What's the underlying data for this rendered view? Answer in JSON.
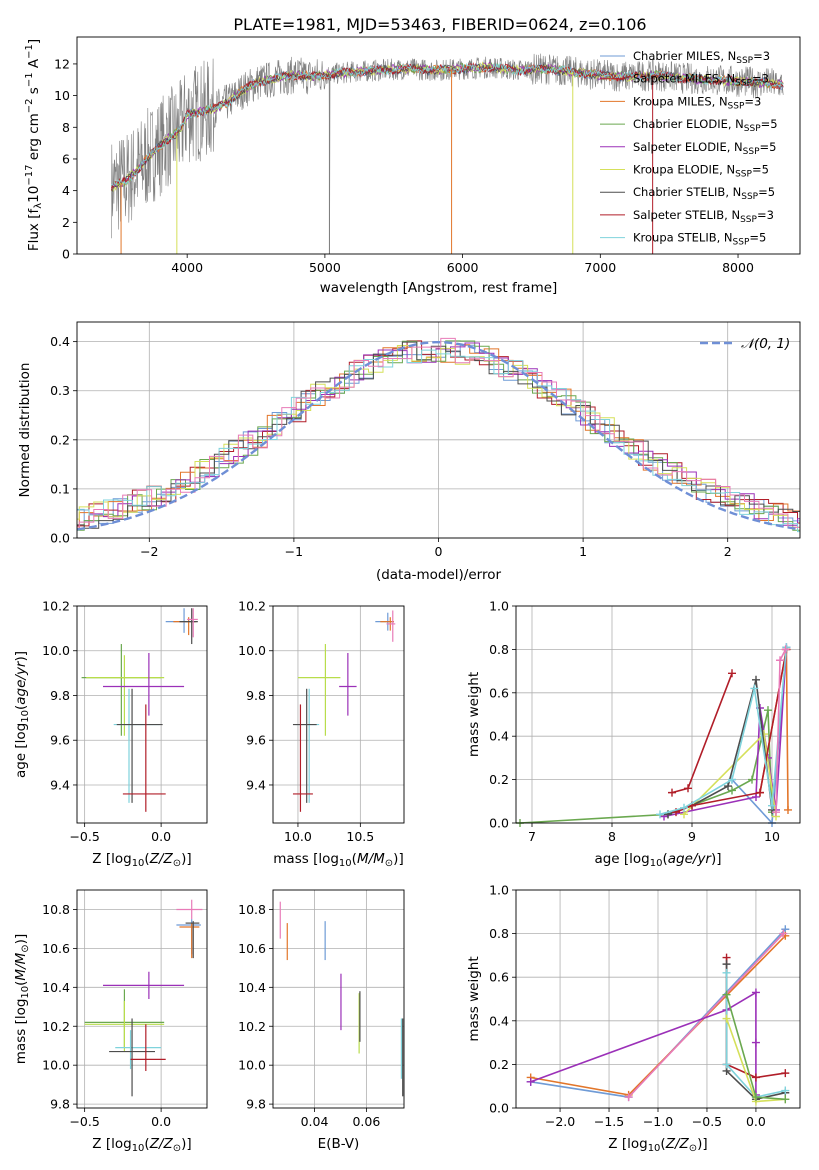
{
  "figure": {
    "title": "PLATE=1981, MJD=53463, FIBERID=0624, z=0.106"
  },
  "series_colors": {
    "Chabrier MILES": "#6f9bd6",
    "Salpeter MILES": "#b11e29",
    "Kroupa MILES": "#e2762a",
    "Chabrier ELODIE": "#6aa84f",
    "Salpeter ELODIE": "#9b30b8",
    "Kroupa ELODIE": "#d5e05a",
    "Chabrier STELIB": "#4d4d4d",
    "Salpeter STELIB": "#b11e29",
    "Kroupa STELIB": "#7fd3dc",
    "data": "#808080",
    "normal": "#6f8fd6",
    "extra_pink": "#e87bb8",
    "extra_lime": "#b8dd4b"
  },
  "chart_data": [
    {
      "id": "spectrum",
      "type": "line",
      "xlabel": "wavelength [Angstrom, rest frame]",
      "ylabel": "Flux [f_λ 10^-17 erg cm^-2 s^-1 A^-1]",
      "xlim": [
        3200,
        8450
      ],
      "ylim": [
        0,
        13.7
      ],
      "xticks": [
        4000,
        5000,
        6000,
        7000,
        8000
      ],
      "yticks": [
        0,
        2,
        4,
        6,
        8,
        10,
        12
      ],
      "legend_position": "top-right",
      "legend": [
        {
          "label": "Chabrier MILES, N_SSP=3",
          "color": "#6f9bd6"
        },
        {
          "label": "Salpeter MILES, N_SSP=3",
          "color": "#b11e29"
        },
        {
          "label": "Kroupa MILES, N_SSP=3",
          "color": "#e2762a"
        },
        {
          "label": "Chabrier ELODIE, N_SSP=5",
          "color": "#6aa84f"
        },
        {
          "label": "Salpeter ELODIE, N_SSP=5",
          "color": "#9b30b8"
        },
        {
          "label": "Kroupa ELODIE, N_SSP=5",
          "color": "#d5e05a"
        },
        {
          "label": "Chabrier STELIB, N_SSP=5",
          "color": "#4d4d4d"
        },
        {
          "label": "Salpeter STELIB, N_SSP=3",
          "color": "#b11e29"
        },
        {
          "label": "Kroupa STELIB, N_SSP=5",
          "color": "#7fd3dc"
        }
      ],
      "model_continuum": [
        [
          3450,
          4.2
        ],
        [
          3550,
          4.6
        ],
        [
          3650,
          5.4
        ],
        [
          3750,
          6.4
        ],
        [
          3850,
          7.2
        ],
        [
          3950,
          7.8
        ],
        [
          4000,
          8.8
        ],
        [
          4100,
          9.0
        ],
        [
          4200,
          9.2
        ],
        [
          4300,
          9.6
        ],
        [
          4400,
          10.3
        ],
        [
          4500,
          10.8
        ],
        [
          4600,
          11.0
        ],
        [
          4700,
          11.2
        ],
        [
          4800,
          11.3
        ],
        [
          4900,
          11.2
        ],
        [
          5000,
          11.3
        ],
        [
          5200,
          11.5
        ],
        [
          5400,
          11.6
        ],
        [
          5600,
          11.7
        ],
        [
          5800,
          11.6
        ],
        [
          6000,
          11.7
        ],
        [
          6200,
          11.8
        ],
        [
          6400,
          11.6
        ],
        [
          6600,
          11.7
        ],
        [
          6800,
          11.5
        ],
        [
          7000,
          11.3
        ],
        [
          7200,
          11.2
        ],
        [
          7400,
          11.3
        ],
        [
          7600,
          11.1
        ],
        [
          7800,
          11.0
        ],
        [
          8000,
          10.9
        ],
        [
          8200,
          10.8
        ],
        [
          8330,
          10.7
        ]
      ]
    },
    {
      "id": "residuals",
      "type": "histogram",
      "xlabel": "(data-model)/error",
      "ylabel": "Normed distribution",
      "xlim": [
        -2.5,
        2.5
      ],
      "ylim": [
        0,
        0.44
      ],
      "xticks": [
        -2,
        -1,
        0,
        1,
        2
      ],
      "yticks": [
        0.0,
        0.1,
        0.2,
        0.3,
        0.4
      ],
      "legend_position": "top-right",
      "legend": [
        {
          "label": "𝒩(0, 1)",
          "color": "#6f8fd6",
          "style": "dashed"
        }
      ],
      "bin_width": 0.1
    },
    {
      "id": "z-age",
      "type": "errorbar",
      "xlabel": "Z [log10(Z/Z⊙)]",
      "ylabel": "age  [log10(age/yr)]",
      "xlim": [
        -0.55,
        0.3
      ],
      "ylim": [
        9.23,
        10.2
      ],
      "xticks": [
        -0.5,
        0.0
      ],
      "yticks": [
        9.4,
        9.6,
        9.8,
        10.0,
        10.2
      ],
      "points": [
        {
          "x": 0.15,
          "y": 10.13,
          "xerr": [
            0.12,
            0.07
          ],
          "yerr": [
            0.05,
            0.06
          ],
          "color": "#6f9bd6"
        },
        {
          "x": 0.18,
          "y": 10.13,
          "xerr": [
            0.1,
            0.05
          ],
          "yerr": [
            0.06,
            0.02
          ],
          "color": "#e2762a"
        },
        {
          "x": 0.2,
          "y": 10.13,
          "xerr": [
            0.08,
            0.04
          ],
          "yerr": [
            0.1,
            0.06
          ],
          "color": "#4d4d4d"
        },
        {
          "x": 0.21,
          "y": 10.14,
          "xerr": [
            0.04,
            0.03
          ],
          "yerr": [
            0.08,
            0.05
          ],
          "color": "#e87bb8"
        },
        {
          "x": -0.26,
          "y": 9.88,
          "xerr": [
            0.26,
            0.26
          ],
          "yerr": [
            0.26,
            0.15
          ],
          "color": "#6aa84f"
        },
        {
          "x": -0.24,
          "y": 9.88,
          "xerr": [
            0.25,
            0.26
          ],
          "yerr": [
            0.26,
            0.1
          ],
          "color": "#b8dd4b"
        },
        {
          "x": -0.08,
          "y": 9.84,
          "xerr": [
            0.3,
            0.23
          ],
          "yerr": [
            0.13,
            0.15
          ],
          "color": "#9b30b8"
        },
        {
          "x": -0.21,
          "y": 9.67,
          "xerr": [
            0.1,
            0.2
          ],
          "yerr": [
            0.35,
            0.16
          ],
          "color": "#7fd3dc"
        },
        {
          "x": -0.19,
          "y": 9.67,
          "xerr": [
            0.1,
            0.2
          ],
          "yerr": [
            0.35,
            0.16
          ],
          "color": "#4d4d4d"
        },
        {
          "x": -0.1,
          "y": 9.36,
          "xerr": [
            0.15,
            0.13
          ],
          "yerr": [
            0.08,
            0.4
          ],
          "color": "#b11e29"
        }
      ]
    },
    {
      "id": "mass-age",
      "type": "errorbar",
      "xlabel": "mass [log10(M/M⊙)]",
      "ylabel": "",
      "xlim": [
        9.8,
        10.85
      ],
      "ylim": [
        9.23,
        10.2
      ],
      "xticks": [
        10.0,
        10.5
      ],
      "yticks": [
        9.4,
        9.6,
        9.8,
        10.0,
        10.2
      ],
      "points": [
        {
          "x": 10.72,
          "y": 10.13,
          "xerr": [
            0.1,
            0.05
          ],
          "yerr": [
            0.04,
            0.04
          ],
          "color": "#6f9bd6"
        },
        {
          "x": 10.74,
          "y": 10.13,
          "xerr": [
            0.08,
            0.03
          ],
          "yerr": [
            0.04,
            0.02
          ],
          "color": "#e2762a"
        },
        {
          "x": 10.76,
          "y": 10.12,
          "xerr": [
            0.05,
            0.02
          ],
          "yerr": [
            0.08,
            0.06
          ],
          "color": "#e87bb8"
        },
        {
          "x": 10.22,
          "y": 9.88,
          "xerr": [
            0.22,
            0.12
          ],
          "yerr": [
            0.26,
            0.15
          ],
          "color": "#b8dd4b"
        },
        {
          "x": 10.4,
          "y": 9.84,
          "xerr": [
            0.07,
            0.07
          ],
          "yerr": [
            0.13,
            0.15
          ],
          "color": "#9b30b8"
        },
        {
          "x": 10.09,
          "y": 9.67,
          "xerr": [
            0.11,
            0.08
          ],
          "yerr": [
            0.35,
            0.16
          ],
          "color": "#7fd3dc"
        },
        {
          "x": 10.07,
          "y": 9.67,
          "xerr": [
            0.11,
            0.08
          ],
          "yerr": [
            0.35,
            0.16
          ],
          "color": "#4d4d4d"
        },
        {
          "x": 10.02,
          "y": 9.36,
          "xerr": [
            0.06,
            0.1
          ],
          "yerr": [
            0.08,
            0.4
          ],
          "color": "#b11e29"
        }
      ]
    },
    {
      "id": "age-weight",
      "type": "line",
      "xlabel": "age  [log10(age/yr)]",
      "ylabel": "mass weight",
      "xlim": [
        6.8,
        10.35
      ],
      "ylim": [
        0,
        1
      ],
      "xticks": [
        7,
        8,
        9,
        10
      ],
      "yticks": [
        0.0,
        0.2,
        0.4,
        0.6,
        0.8,
        1.0
      ],
      "series": [
        {
          "name": "Chabrier MILES, N_SSP=3",
          "color": "#6f9bd6",
          "x": [
            9.5,
            10.0,
            10.18
          ],
          "y": [
            0.2,
            0.0,
            0.8
          ]
        },
        {
          "name": "Salpeter MILES, N_SSP=3",
          "color": "#b11e29",
          "x": [
            8.75,
            8.95,
            9.5
          ],
          "y": [
            0.14,
            0.16,
            0.69
          ]
        },
        {
          "name": "Kroupa MILES, N_SSP=3",
          "color": "#e2762a",
          "x": [
            9.85,
            10.18,
            10.2
          ],
          "y": [
            0.14,
            0.8,
            0.06
          ]
        },
        {
          "name": "Chabrier ELODIE, N_SSP=5",
          "color": "#6aa84f",
          "x": [
            6.85,
            8.7,
            9.5,
            9.75,
            9.95,
            10.0
          ],
          "y": [
            0.0,
            0.04,
            0.15,
            0.2,
            0.52,
            0.05
          ]
        },
        {
          "name": "Salpeter ELODIE, N_SSP=5",
          "color": "#9b30b8",
          "x": [
            8.65,
            9.8,
            9.85,
            9.95,
            10.05,
            10.18
          ],
          "y": [
            0.03,
            0.12,
            0.53,
            0.3,
            0.06,
            0.81
          ]
        },
        {
          "name": "Kroupa ELODIE, N_SSP=5",
          "color": "#d5e05a",
          "x": [
            8.9,
            9.9,
            10.05
          ],
          "y": [
            0.04,
            0.41,
            0.03
          ]
        },
        {
          "name": "Chabrier STELIB, N_SSP=5",
          "color": "#4d4d4d",
          "x": [
            8.7,
            9.0,
            9.45,
            9.8,
            10.0
          ],
          "y": [
            0.04,
            0.08,
            0.17,
            0.66,
            0.06
          ]
        },
        {
          "name": "Salpeter STELIB, N_SSP=3",
          "color": "#b11e29",
          "x": [
            8.8,
            9.0,
            9.85,
            10.18
          ],
          "y": [
            0.05,
            0.08,
            0.14,
            0.8
          ]
        },
        {
          "name": "Kroupa STELIB, N_SSP=5",
          "color": "#7fd3dc",
          "x": [
            8.6,
            8.9,
            9.5,
            9.78,
            10.0,
            10.18
          ],
          "y": [
            0.04,
            0.07,
            0.2,
            0.62,
            0.08,
            0.81
          ]
        },
        {
          "name": "",
          "color": "#e87bb8",
          "x": [
            10.05,
            10.1,
            10.17
          ],
          "y": [
            0.05,
            0.75,
            0.8
          ]
        }
      ]
    },
    {
      "id": "z-mass",
      "type": "errorbar",
      "xlabel": "Z [log10(Z/Z⊙)]",
      "ylabel": "mass [log10(M/M⊙)]",
      "xlim": [
        -0.55,
        0.3
      ],
      "ylim": [
        9.78,
        10.9
      ],
      "xticks": [
        -0.5,
        0.0
      ],
      "yticks": [
        9.8,
        10.0,
        10.2,
        10.4,
        10.6,
        10.8
      ],
      "points": [
        {
          "x": 0.2,
          "y": 10.8,
          "xerr": [
            0.1,
            0.07
          ],
          "yerr": [
            0.05,
            0.05
          ],
          "color": "#e87bb8"
        },
        {
          "x": 0.2,
          "y": 10.72,
          "xerr": [
            0.1,
            0.06
          ],
          "yerr": [
            0.15,
            0.03
          ],
          "color": "#6f9bd6"
        },
        {
          "x": 0.2,
          "y": 10.71,
          "xerr": [
            0.08,
            0.05
          ],
          "yerr": [
            0.16,
            0.02
          ],
          "color": "#e2762a"
        },
        {
          "x": 0.21,
          "y": 10.73,
          "xerr": [
            0.05,
            0.04
          ],
          "yerr": [
            0.18,
            0.01
          ],
          "color": "#4d4d4d"
        },
        {
          "x": -0.24,
          "y": 10.22,
          "xerr": [
            0.26,
            0.26
          ],
          "yerr": [
            0.13,
            0.17
          ],
          "color": "#6aa84f"
        },
        {
          "x": -0.24,
          "y": 10.21,
          "xerr": [
            0.26,
            0.26
          ],
          "yerr": [
            0.14,
            0.12
          ],
          "color": "#b8dd4b"
        },
        {
          "x": -0.08,
          "y": 10.41,
          "xerr": [
            0.3,
            0.23
          ],
          "yerr": [
            0.07,
            0.07
          ],
          "color": "#9b30b8"
        },
        {
          "x": -0.2,
          "y": 10.09,
          "xerr": [
            0.1,
            0.2
          ],
          "yerr": [
            0.11,
            0.09
          ],
          "color": "#7fd3dc"
        },
        {
          "x": -0.19,
          "y": 10.07,
          "xerr": [
            0.15,
            0.15
          ],
          "yerr": [
            0.23,
            0.17
          ],
          "color": "#4d4d4d"
        },
        {
          "x": -0.1,
          "y": 10.03,
          "xerr": [
            0.1,
            0.13
          ],
          "yerr": [
            0.06,
            0.18
          ],
          "color": "#b11e29"
        }
      ]
    },
    {
      "id": "ebv-mass",
      "type": "errorbar",
      "xlabel": "E(B-V)",
      "ylabel": "",
      "xlim": [
        0.024,
        0.0745
      ],
      "ylim": [
        9.78,
        10.9
      ],
      "xticks": [
        0.04,
        0.06
      ],
      "yticks": [
        9.8,
        10.0,
        10.2,
        10.4,
        10.6,
        10.8
      ],
      "points": [
        {
          "x": 0.0268,
          "y": 10.75,
          "yerr": [
            0.1,
            0.09
          ],
          "color": "#e87bb8"
        },
        {
          "x": 0.0295,
          "y": 10.63,
          "yerr": [
            0.09,
            0.1
          ],
          "color": "#e2762a"
        },
        {
          "x": 0.0441,
          "y": 10.64,
          "yerr": [
            0.1,
            0.1
          ],
          "color": "#6f9bd6"
        },
        {
          "x": 0.0502,
          "y": 10.33,
          "yerr": [
            0.15,
            0.14
          ],
          "color": "#9b30b8"
        },
        {
          "x": 0.0572,
          "y": 10.21,
          "yerr": [
            0.15,
            0.16
          ],
          "color": "#b8dd4b"
        },
        {
          "x": 0.0575,
          "y": 10.26,
          "yerr": [
            0.14,
            0.12
          ],
          "color": "#4d4d4d"
        },
        {
          "x": 0.0735,
          "y": 10.08,
          "yerr": [
            0.15,
            0.16
          ],
          "color": "#7fd3dc"
        },
        {
          "x": 0.074,
          "y": 10.04,
          "yerr": [
            0.2,
            0.2
          ],
          "color": "#4d4d4d"
        }
      ]
    },
    {
      "id": "z-weight",
      "type": "line",
      "xlabel": "Z [log10(Z/Z⊙)]",
      "ylabel": "mass weight",
      "xlim": [
        -2.45,
        0.45
      ],
      "ylim": [
        0,
        1
      ],
      "xticks": [
        -2.0,
        -1.5,
        -1.0,
        -0.5,
        0.0
      ],
      "yticks": [
        0.0,
        0.2,
        0.4,
        0.6,
        0.8,
        1.0
      ],
      "series": [
        {
          "name": "Chabrier MILES, N_SSP=3",
          "color": "#6f9bd6",
          "x": [
            -2.3,
            -1.3,
            0.3
          ],
          "y": [
            0.12,
            0.05,
            0.82
          ]
        },
        {
          "name": "Kroupa MILES, N_SSP=3",
          "color": "#e2762a",
          "x": [
            -2.3,
            -1.3,
            0.3
          ],
          "y": [
            0.14,
            0.06,
            0.79
          ]
        },
        {
          "name": "",
          "color": "#e87bb8",
          "x": [
            -1.3,
            0.28
          ],
          "y": [
            0.05,
            0.8
          ]
        },
        {
          "name": "Salpeter ELODIE, N_SSP=5",
          "color": "#9b30b8",
          "x": [
            -2.3,
            -0.3,
            0.0,
            0.0,
            0.0
          ],
          "y": [
            0.12,
            0.45,
            0.53,
            0.3,
            0.06
          ]
        },
        {
          "name": "Salpeter MILES, N_SSP=3",
          "color": "#b11e29",
          "x": [
            -0.3,
            -0.3,
            0.0,
            0.3
          ],
          "y": [
            0.69,
            0.2,
            0.14,
            0.16
          ]
        },
        {
          "name": "Chabrier STELIB, N_SSP=5",
          "color": "#4d4d4d",
          "x": [
            -0.3,
            -0.3,
            0.0,
            0.3
          ],
          "y": [
            0.66,
            0.17,
            0.04,
            0.07
          ]
        },
        {
          "name": "Kroupa STELIB, N_SSP=5",
          "color": "#7fd3dc",
          "x": [
            -0.3,
            -0.3,
            0.0,
            0.3
          ],
          "y": [
            0.62,
            0.2,
            0.05,
            0.08
          ]
        },
        {
          "name": "Kroupa ELODIE, N_SSP=5",
          "color": "#d5e05a",
          "x": [
            -0.3,
            0.0,
            0.3
          ],
          "y": [
            0.41,
            0.03,
            0.04
          ]
        },
        {
          "name": "Chabrier ELODIE, N_SSP=5",
          "color": "#6aa84f",
          "x": [
            -0.3,
            0.0,
            0.3
          ],
          "y": [
            0.52,
            0.05,
            0.04
          ]
        }
      ]
    }
  ]
}
